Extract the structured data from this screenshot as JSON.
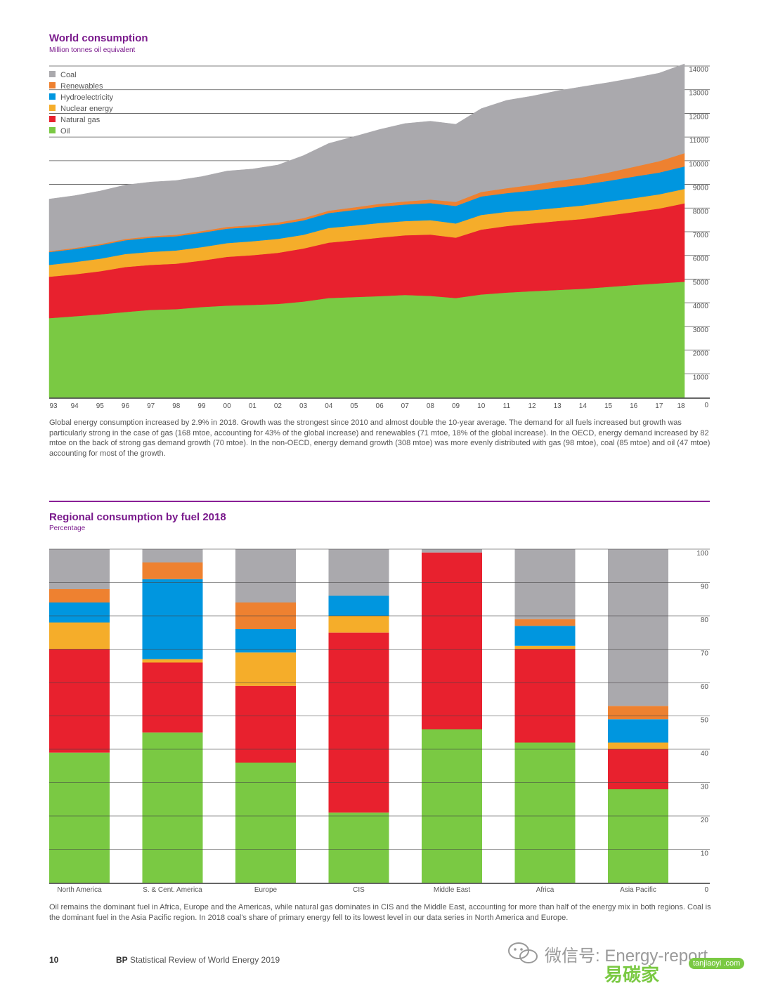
{
  "chart_data": [
    {
      "type": "area",
      "title": "World consumption",
      "subtitle": "Million tonnes oil equivalent",
      "x": [
        "93",
        "94",
        "95",
        "96",
        "97",
        "98",
        "99",
        "00",
        "01",
        "02",
        "03",
        "04",
        "05",
        "06",
        "07",
        "08",
        "09",
        "10",
        "11",
        "12",
        "13",
        "14",
        "15",
        "16",
        "17",
        "18"
      ],
      "ylim": [
        0,
        14000
      ],
      "yticks": [
        0,
        1000,
        2000,
        3000,
        4000,
        5000,
        6000,
        7000,
        8000,
        9000,
        10000,
        11000,
        12000,
        13000,
        14000
      ],
      "stacked": true,
      "legend_position": "top-left",
      "series": [
        {
          "name": "Oil",
          "color": "#7ac943",
          "values": [
            3350,
            3430,
            3510,
            3610,
            3700,
            3730,
            3820,
            3880,
            3910,
            3950,
            4050,
            4200,
            4240,
            4280,
            4330,
            4290,
            4200,
            4350,
            4430,
            4490,
            4540,
            4590,
            4670,
            4750,
            4820,
            4890
          ]
        },
        {
          "name": "Natural gas",
          "color": "#e8212e",
          "values": [
            1750,
            1770,
            1820,
            1900,
            1900,
            1920,
            1960,
            2060,
            2100,
            2160,
            2240,
            2340,
            2400,
            2470,
            2520,
            2590,
            2550,
            2740,
            2810,
            2860,
            2910,
            2950,
            3020,
            3080,
            3160,
            3310
          ]
        },
        {
          "name": "Nuclear energy",
          "color": "#f5ad2a",
          "values": [
            500,
            520,
            530,
            550,
            550,
            560,
            570,
            580,
            590,
            590,
            580,
            620,
            620,
            620,
            600,
            610,
            600,
            620,
            600,
            560,
            560,
            570,
            580,
            590,
            600,
            610
          ]
        },
        {
          "name": "Hydroelectricity",
          "color": "#0096df",
          "values": [
            540,
            550,
            570,
            580,
            600,
            600,
            610,
            610,
            600,
            600,
            610,
            630,
            660,
            690,
            700,
            720,
            740,
            780,
            790,
            830,
            860,
            880,
            880,
            910,
            920,
            950
          ]
        },
        {
          "name": "Renewables",
          "color": "#ee8130",
          "values": [
            40,
            45,
            50,
            55,
            60,
            65,
            70,
            75,
            80,
            90,
            95,
            100,
            110,
            120,
            130,
            150,
            170,
            190,
            210,
            240,
            280,
            310,
            350,
            410,
            480,
            560
          ]
        },
        {
          "name": "Coal",
          "color": "#aaa9ad",
          "values": [
            2200,
            2210,
            2240,
            2280,
            2290,
            2290,
            2300,
            2360,
            2370,
            2430,
            2640,
            2840,
            2990,
            3140,
            3290,
            3310,
            3280,
            3520,
            3710,
            3750,
            3800,
            3830,
            3800,
            3750,
            3720,
            3770
          ]
        }
      ]
    },
    {
      "type": "bar",
      "stacked": true,
      "title": "Regional consumption by fuel 2018",
      "subtitle": "Percentage",
      "categories": [
        "North America",
        "S. & Cent. America",
        "Europe",
        "CIS",
        "Middle East",
        "Africa",
        "Asia Pacific"
      ],
      "ylim": [
        0,
        100
      ],
      "yticks": [
        0,
        10,
        20,
        30,
        40,
        50,
        60,
        70,
        80,
        90,
        100
      ],
      "series": [
        {
          "name": "Oil",
          "color": "#7ac943",
          "values": [
            39,
            45,
            36,
            21,
            46,
            42,
            28
          ]
        },
        {
          "name": "Natural gas",
          "color": "#e8212e",
          "values": [
            31,
            21,
            23,
            54,
            53,
            28,
            12
          ]
        },
        {
          "name": "Nuclear energy",
          "color": "#f5ad2a",
          "values": [
            8,
            1,
            10,
            5,
            0,
            1,
            2
          ]
        },
        {
          "name": "Hydroelectricity",
          "color": "#0096df",
          "values": [
            6,
            24,
            7,
            6,
            0,
            6,
            7
          ]
        },
        {
          "name": "Renewables",
          "color": "#ee8130",
          "values": [
            4,
            5,
            8,
            0,
            0,
            2,
            4
          ]
        },
        {
          "name": "Coal",
          "color": "#aaa9ad",
          "values": [
            12,
            4,
            16,
            14,
            1,
            21,
            47
          ]
        }
      ]
    }
  ],
  "captions": {
    "world": "Global energy consumption increased by 2.9% in 2018. Growth was the strongest since 2010 and almost double the 10-year average. The demand for all fuels increased but growth was particularly strong in the case of gas (168 mtoe, accounting for 43% of the global increase) and renewables (71 mtoe, 18% of the global increase). In the OECD, energy demand increased by 82 mtoe on the back of strong gas demand growth (70 mtoe). In the non-OECD, energy demand growth (308 mtoe) was more evenly distributed with gas (98 mtoe), coal (85 mtoe) and oil (47 mtoe) accounting for most of the growth.",
    "regional": "Oil remains the dominant fuel in Africa, Europe and the Americas, while natural gas dominates in CIS and the Middle East, accounting for more than half of the energy mix in both regions. Coal is the dominant fuel in the Asia Pacific region. In 2018 coal's share of primary energy fell to its lowest level in our data series in North America and Europe."
  },
  "footer": {
    "page_number": "10",
    "brand": "BP",
    "publication": "Statistical Review of World Energy 2019"
  },
  "watermark": {
    "text": "微信号: Energy-report",
    "brand_cn": "易碳家",
    "site": "tanjiaoyi .com"
  }
}
